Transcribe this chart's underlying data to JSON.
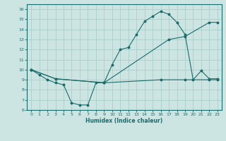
{
  "xlabel": "Humidex (Indice chaleur)",
  "xlim": [
    -0.5,
    23.5
  ],
  "ylim": [
    6,
    16.5
  ],
  "yticks": [
    6,
    7,
    8,
    9,
    10,
    11,
    12,
    13,
    14,
    15,
    16
  ],
  "xticks": [
    0,
    1,
    2,
    3,
    4,
    5,
    6,
    7,
    8,
    9,
    10,
    11,
    12,
    13,
    14,
    15,
    16,
    17,
    18,
    19,
    20,
    21,
    22,
    23
  ],
  "bg_color": "#cce5e3",
  "grid_color": "#aacfcc",
  "line_color": "#1a6b6b",
  "curve1_x": [
    0,
    1,
    2,
    3,
    4,
    5,
    6,
    7,
    8,
    9,
    10,
    11,
    12,
    13,
    14,
    15,
    16,
    17,
    18,
    19,
    20,
    21,
    22,
    23
  ],
  "curve1_y": [
    10.0,
    9.5,
    9.0,
    8.7,
    8.5,
    6.7,
    6.5,
    6.5,
    8.7,
    8.7,
    10.5,
    12.0,
    12.2,
    13.5,
    14.8,
    15.3,
    15.8,
    15.5,
    14.7,
    13.5,
    9.0,
    9.9,
    9.1,
    9.1
  ],
  "curve2_x": [
    0,
    3,
    9,
    17,
    19,
    22,
    23
  ],
  "curve2_y": [
    10.0,
    9.1,
    8.7,
    13.0,
    13.3,
    14.7,
    14.7
  ],
  "curve3_x": [
    0,
    3,
    9,
    16,
    19,
    22,
    23
  ],
  "curve3_y": [
    10.0,
    9.1,
    8.7,
    9.0,
    9.0,
    9.0,
    9.0
  ]
}
